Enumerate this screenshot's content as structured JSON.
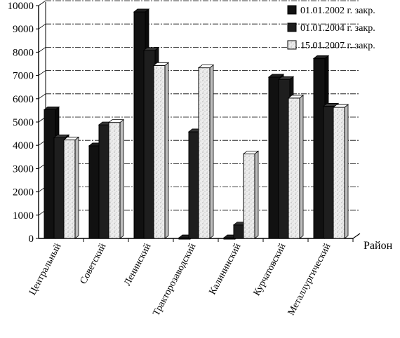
{
  "chart_data": {
    "type": "bar",
    "xlabel": "Район",
    "ylabel": "",
    "ylim": [
      0,
      10000
    ],
    "yticks": [
      0,
      1000,
      2000,
      3000,
      4000,
      5000,
      6000,
      7000,
      8000,
      9000,
      10000
    ],
    "grid": true,
    "legend_position": "top-right",
    "categories": [
      "Центральный",
      "Советский",
      "Ленинский",
      "Тракторозаводский",
      "Калининский",
      "Курчатовский",
      "Металлургический"
    ],
    "series": [
      {
        "name": "01.01.2002 г. закр.",
        "color": "#111111",
        "values": [
          5500,
          3950,
          9700,
          0,
          0,
          6900,
          7700
        ]
      },
      {
        "name": "01.01.2004 г. закр.",
        "color": "#1e1e1e",
        "values": [
          4300,
          4850,
          8050,
          4550,
          550,
          6800,
          5650
        ]
      },
      {
        "name": "15.01.2007 г. закр.",
        "color": "#e9e9e9",
        "values": [
          4200,
          4950,
          7400,
          7300,
          3600,
          6000,
          5600
        ]
      }
    ]
  }
}
